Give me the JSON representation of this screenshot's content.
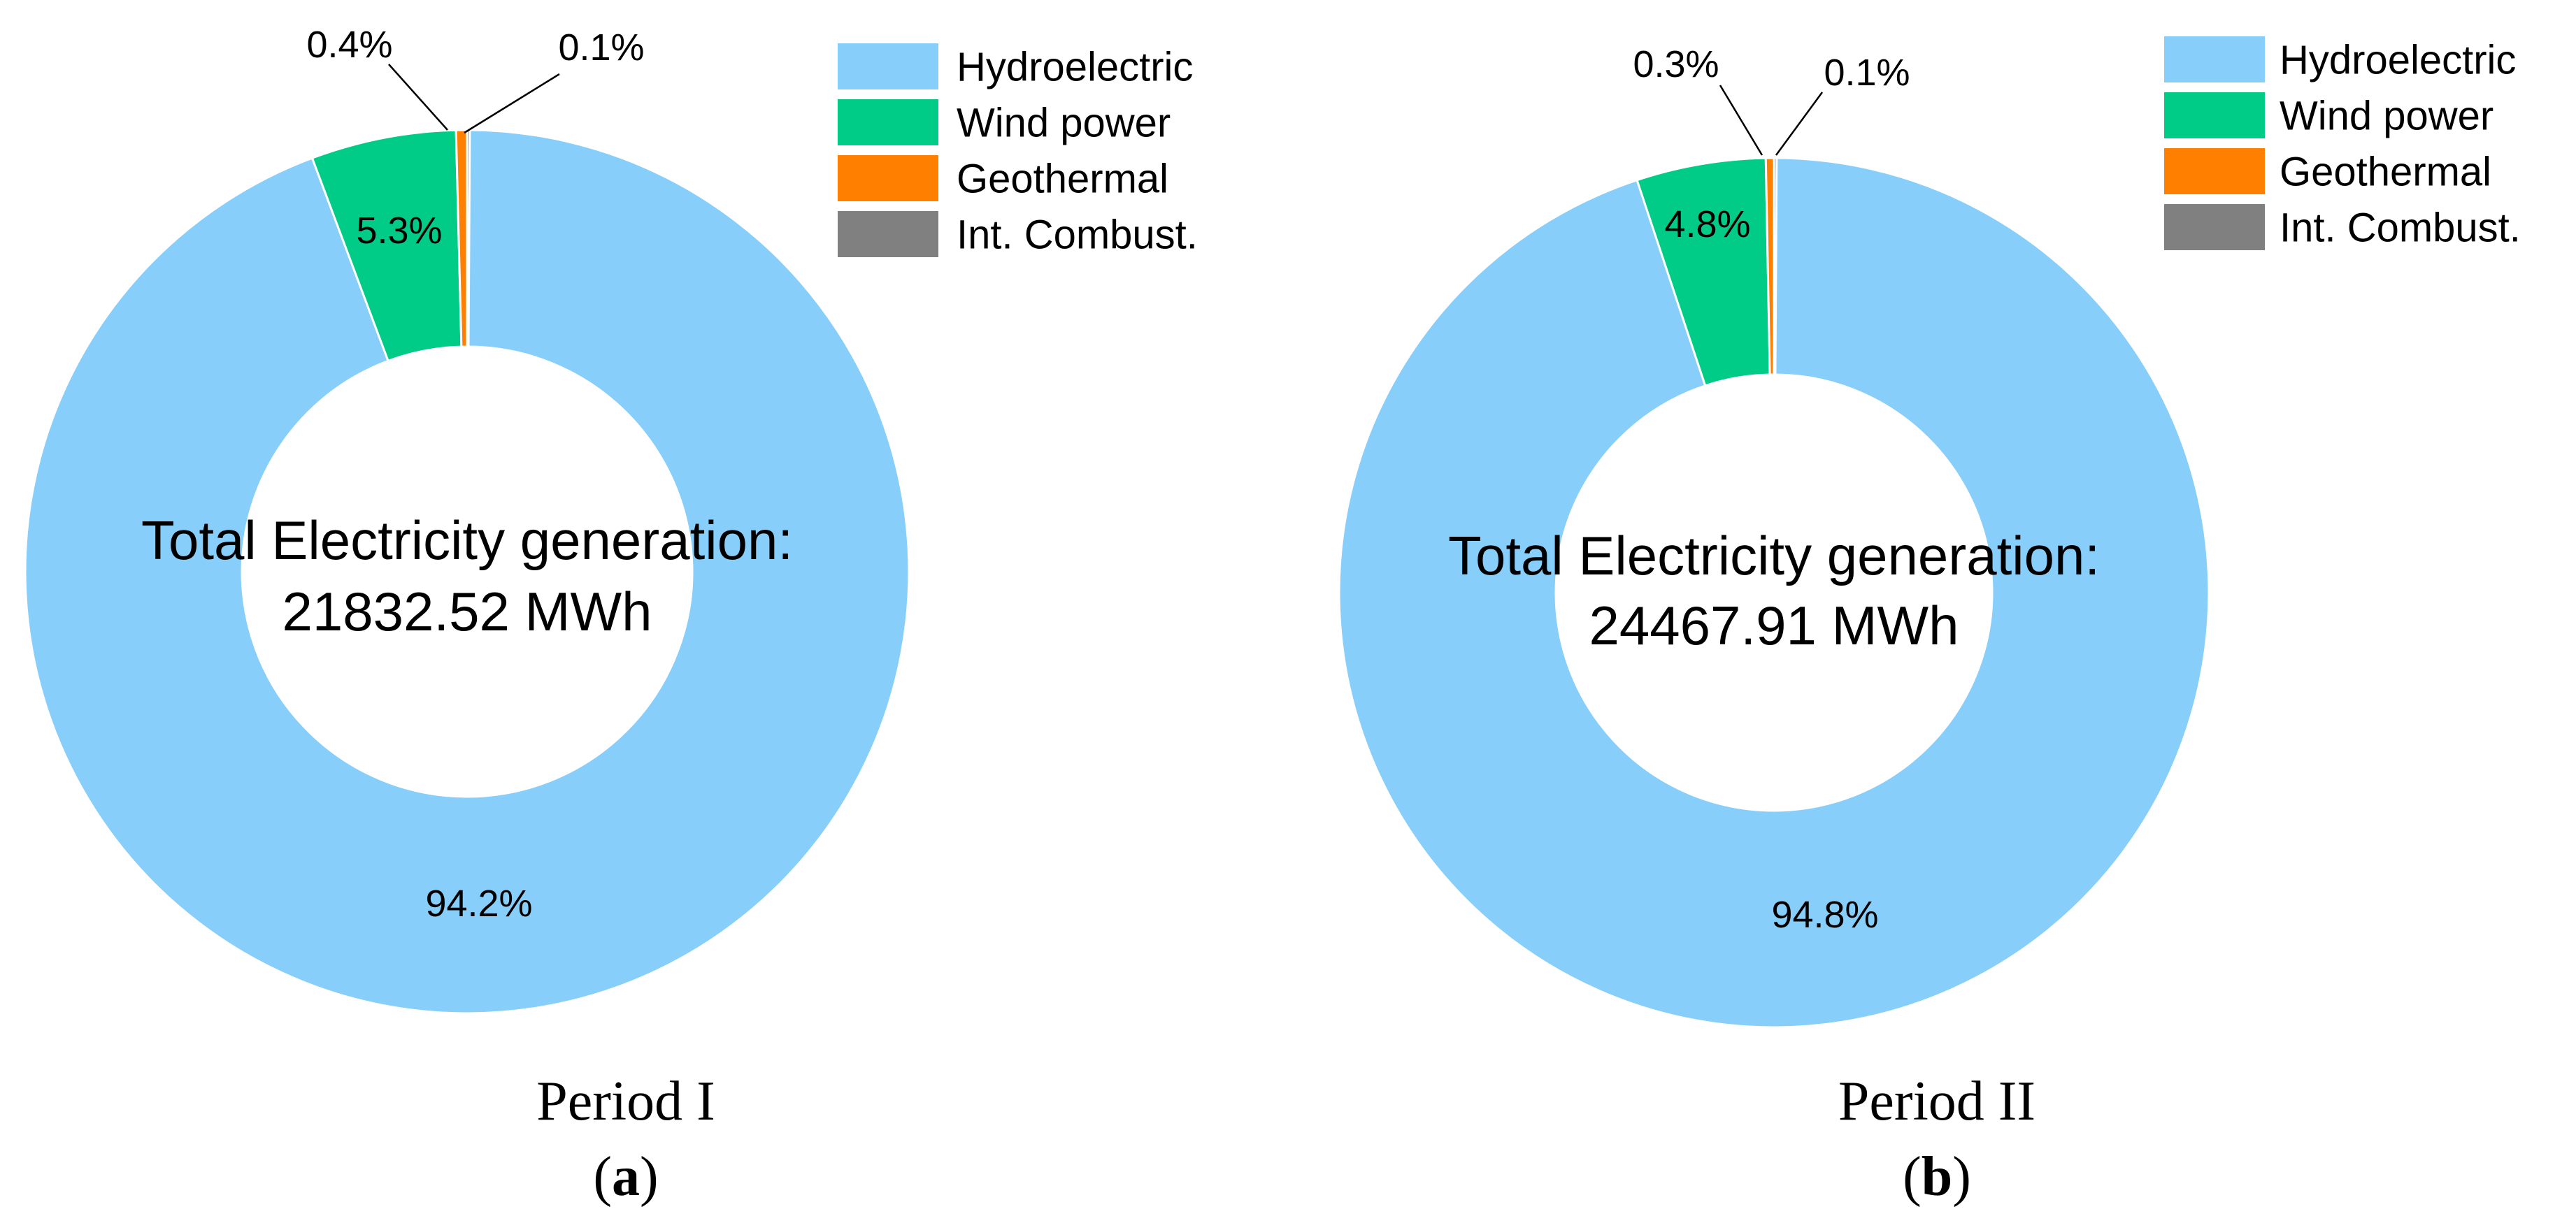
{
  "chart_data": [
    {
      "type": "pie",
      "donut": true,
      "panel_label": "a",
      "period_label": "Period I",
      "center_text_line1": "Total Electricity generation:",
      "center_text_line2": "21832.52 MWh",
      "total_mwh": 21832.52,
      "slices": [
        {
          "name": "Int. Combust.",
          "value": 0.1,
          "label": "0.1%",
          "color": "#808080"
        },
        {
          "name": "Hydroelectric",
          "value": 94.2,
          "label": "94.2%",
          "color": "#87CEFA"
        },
        {
          "name": "Wind power",
          "value": 5.3,
          "label": "5.3%",
          "color": "#00CC88"
        },
        {
          "name": "Geothermal",
          "value": 0.4,
          "label": "0.4%",
          "color": "#FF8000"
        }
      ],
      "legend": [
        {
          "name": "Hydroelectric",
          "color": "#87CEFA"
        },
        {
          "name": "Wind power",
          "color": "#00CC88"
        },
        {
          "name": "Geothermal",
          "color": "#FF8000"
        },
        {
          "name": "Int. Combust.",
          "color": "#808080"
        }
      ],
      "legend_position": "top-right"
    },
    {
      "type": "pie",
      "donut": true,
      "panel_label": "b",
      "period_label": "Period II",
      "center_text_line1": "Total Electricity generation:",
      "center_text_line2": "24467.91 MWh",
      "total_mwh": 24467.91,
      "slices": [
        {
          "name": "Int. Combust.",
          "value": 0.1,
          "label": "0.1%",
          "color": "#808080"
        },
        {
          "name": "Hydroelectric",
          "value": 94.8,
          "label": "94.8%",
          "color": "#87CEFA"
        },
        {
          "name": "Wind power",
          "value": 4.8,
          "label": "4.8%",
          "color": "#00CC88"
        },
        {
          "name": "Geothermal",
          "value": 0.3,
          "label": "0.3%",
          "color": "#FF8000"
        }
      ],
      "legend": [
        {
          "name": "Hydroelectric",
          "color": "#87CEFA"
        },
        {
          "name": "Wind power",
          "color": "#00CC88"
        },
        {
          "name": "Geothermal",
          "color": "#FF8000"
        },
        {
          "name": "Int. Combust.",
          "color": "#808080"
        }
      ],
      "legend_position": "top-right"
    }
  ]
}
